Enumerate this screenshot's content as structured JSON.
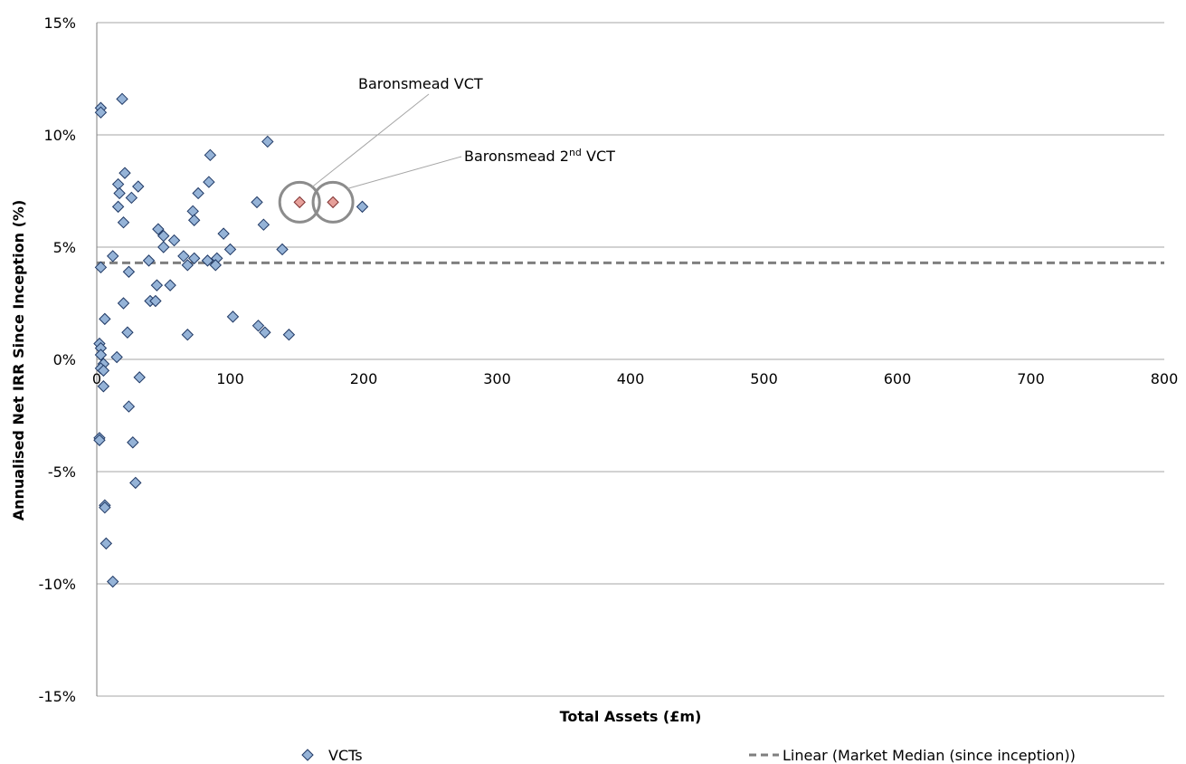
{
  "chart_data": {
    "type": "scatter",
    "title": "",
    "xlabel": "Total Assets (£m)",
    "ylabel": "Annualised Net IRR Since Inception (%)",
    "xlim": [
      0,
      800
    ],
    "ylim": [
      -15,
      15
    ],
    "x_ticks": [
      0,
      100,
      200,
      300,
      400,
      500,
      600,
      700,
      800
    ],
    "y_ticks": [
      -15,
      -10,
      -5,
      0,
      5,
      10,
      15
    ],
    "y_tick_labels": [
      "-15%",
      "-10%",
      "-5%",
      "0%",
      "5%",
      "10%",
      "15%"
    ],
    "grid": "horizontal",
    "legend_position": "bottom",
    "colors": {
      "vct_fill": "#95b3d7",
      "vct_edge": "#1f3864",
      "highlight_fill": "#e6a09a",
      "highlight_edge": "#7f3030",
      "trend_line": "#7f7f7f",
      "circle": "#8c8c8c"
    },
    "series": [
      {
        "name": "VCTs",
        "marker": "diamond",
        "points": [
          [
            3,
            11.2
          ],
          [
            3,
            11.0
          ],
          [
            19,
            11.6
          ],
          [
            128,
            9.7
          ],
          [
            85,
            9.1
          ],
          [
            21,
            8.3
          ],
          [
            84,
            7.9
          ],
          [
            16,
            7.8
          ],
          [
            31,
            7.7
          ],
          [
            17,
            7.4
          ],
          [
            76,
            7.4
          ],
          [
            26,
            7.2
          ],
          [
            120,
            7.0
          ],
          [
            16,
            6.8
          ],
          [
            199,
            6.8
          ],
          [
            72,
            6.6
          ],
          [
            73,
            6.2
          ],
          [
            20,
            6.1
          ],
          [
            125,
            6.0
          ],
          [
            46,
            5.8
          ],
          [
            50,
            5.5
          ],
          [
            95,
            5.6
          ],
          [
            58,
            5.3
          ],
          [
            50,
            5.0
          ],
          [
            100,
            4.9
          ],
          [
            139,
            4.9
          ],
          [
            12,
            4.6
          ],
          [
            65,
            4.6
          ],
          [
            73,
            4.5
          ],
          [
            90,
            4.5
          ],
          [
            39,
            4.4
          ],
          [
            83,
            4.4
          ],
          [
            68,
            4.2
          ],
          [
            89,
            4.2
          ],
          [
            3,
            4.1
          ],
          [
            24,
            3.9
          ],
          [
            45,
            3.3
          ],
          [
            55,
            3.3
          ],
          [
            40,
            2.6
          ],
          [
            44,
            2.6
          ],
          [
            20,
            2.5
          ],
          [
            102,
            1.9
          ],
          [
            6,
            1.8
          ],
          [
            121,
            1.5
          ],
          [
            23,
            1.2
          ],
          [
            68,
            1.1
          ],
          [
            126,
            1.2
          ],
          [
            144,
            1.1
          ],
          [
            2,
            0.7
          ],
          [
            3,
            0.5
          ],
          [
            3,
            0.2
          ],
          [
            15,
            0.1
          ],
          [
            5,
            -0.2
          ],
          [
            3,
            -0.4
          ],
          [
            5,
            -0.5
          ],
          [
            32,
            -0.8
          ],
          [
            5,
            -1.2
          ],
          [
            24,
            -2.1
          ],
          [
            2,
            -3.5
          ],
          [
            2,
            -3.6
          ],
          [
            27,
            -3.7
          ],
          [
            29,
            -5.5
          ],
          [
            6,
            -6.5
          ],
          [
            6,
            -6.6
          ],
          [
            7,
            -8.2
          ],
          [
            12,
            -9.9
          ]
        ]
      },
      {
        "name": "Baronsmead",
        "marker": "diamond",
        "points": [
          [
            152,
            7.0
          ],
          [
            177,
            7.0
          ]
        ]
      }
    ],
    "trend_line": {
      "name": "Linear (Market Median (since inception))",
      "y": 4.3
    },
    "annotations": [
      {
        "text": "Baronsmead VCT",
        "x": 152,
        "y": 7.0
      },
      {
        "text_main": "Baronsmead 2",
        "text_sup": "nd",
        "text_tail": " VCT",
        "x": 177,
        "y": 7.0
      }
    ],
    "legend": {
      "vcts_label": "VCTs",
      "trend_label": "Linear (Market Median (since inception))"
    }
  }
}
